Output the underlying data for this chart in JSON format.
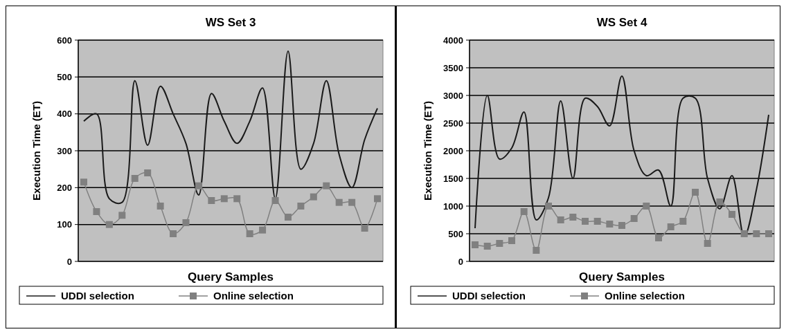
{
  "chart_data": [
    {
      "type": "line",
      "title": "WS Set 3",
      "xlabel": "Query Samples",
      "ylabel": "Execution Time (ET)",
      "categories": [
        null,
        null,
        null,
        null,
        null,
        null,
        null,
        null,
        null,
        null,
        null,
        null,
        null,
        null,
        null,
        null,
        null,
        null,
        null,
        null,
        null,
        null,
        null,
        null
      ],
      "ylim": [
        0,
        600
      ],
      "yticks": [
        0,
        100,
        200,
        300,
        400,
        500,
        600
      ],
      "grid": "y",
      "legend": "bottom",
      "series": [
        {
          "name": "UDDI selection",
          "color": "#1a1a1a",
          "marker": "none",
          "values": [
            380,
            400,
            170,
            160,
            490,
            315,
            475,
            400,
            320,
            180,
            455,
            380,
            320,
            380,
            470,
            170,
            570,
            250,
            320,
            490,
            290,
            200,
            330,
            415
          ]
        },
        {
          "name": "Online selection",
          "color": "#808080",
          "marker": "square",
          "values": [
            215,
            135,
            100,
            125,
            225,
            240,
            150,
            75,
            105,
            205,
            165,
            170,
            170,
            75,
            85,
            165,
            120,
            150,
            175,
            205,
            160,
            160,
            90,
            170
          ]
        }
      ]
    },
    {
      "type": "line",
      "title": "WS Set 4",
      "xlabel": "Query Samples",
      "ylabel": "Execution Time (ET)",
      "categories": [
        null,
        null,
        null,
        null,
        null,
        null,
        null,
        null,
        null,
        null,
        null,
        null,
        null,
        null,
        null,
        null,
        null,
        null,
        null,
        null,
        null,
        null,
        null,
        null,
        null
      ],
      "ylim": [
        0,
        4000
      ],
      "yticks": [
        0,
        500,
        1000,
        1500,
        2000,
        2500,
        3000,
        3500,
        4000
      ],
      "grid": "y",
      "legend": "bottom",
      "series": [
        {
          "name": "UDDI selection",
          "color": "#1a1a1a",
          "marker": "none",
          "values": [
            600,
            3000,
            1850,
            2050,
            2700,
            750,
            1150,
            2900,
            1500,
            2950,
            2800,
            2450,
            3350,
            2000,
            1550,
            1650,
            1000,
            2950,
            2950,
            1500,
            950,
            1550,
            450,
            1300,
            2650
          ]
        },
        {
          "name": "Online selection",
          "color": "#808080",
          "marker": "square",
          "values": [
            300,
            275,
            325,
            375,
            900,
            200,
            1000,
            750,
            800,
            725,
            725,
            675,
            650,
            775,
            1000,
            425,
            625,
            725,
            1250,
            325,
            1075,
            850,
            500,
            500,
            500
          ]
        }
      ]
    }
  ]
}
